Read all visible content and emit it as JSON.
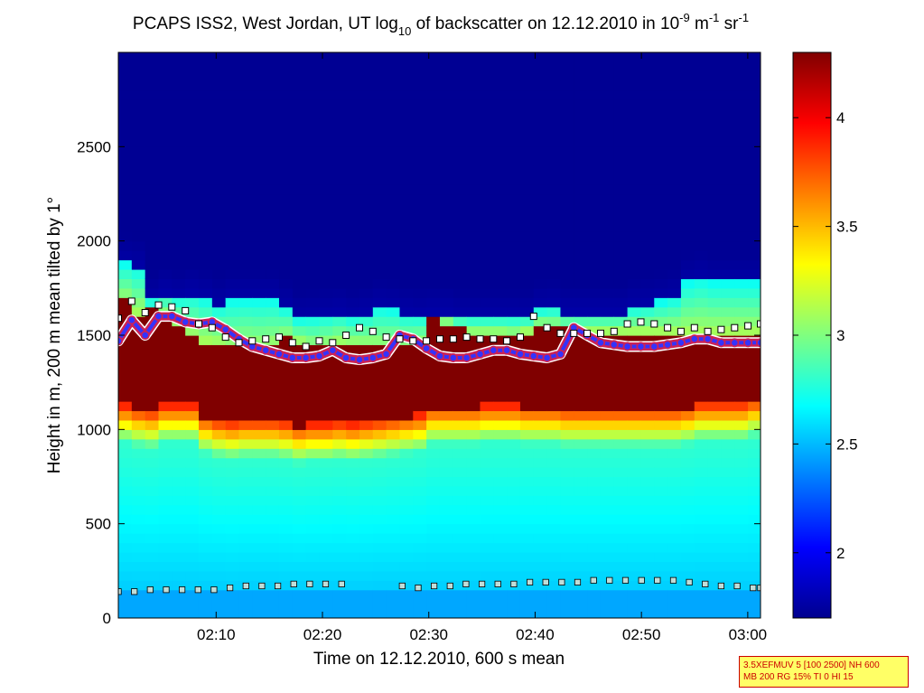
{
  "chart_data": {
    "type": "heatmap",
    "title": {
      "part1": "PCAPS ISS2, West Jordan, UT log",
      "sub": "10",
      "part2": " of backscatter on 12.12.2010 in 10",
      "sup1": "-9",
      "part3": " m",
      "sup2": "-1",
      "part4": " sr",
      "sup3": "-1"
    },
    "xlabel": "Time on 12.12.2010, 600 s mean",
    "ylabel": "Height in m, 200 m mean tilted by 1°",
    "x_ticks": [
      "02:10",
      "02:20",
      "02:30",
      "02:40",
      "02:50",
      "03:00"
    ],
    "x_tick_minutes": [
      130,
      140,
      150,
      160,
      170,
      180
    ],
    "xlim_minutes": [
      120.8,
      181.2
    ],
    "y_ticks": [
      "0",
      "500",
      "1000",
      "1500",
      "2000",
      "2500"
    ],
    "y_tick_values": [
      0,
      500,
      1000,
      1500,
      2000,
      2500
    ],
    "ylim": [
      0,
      3000
    ],
    "colorbar": {
      "range": [
        1.7,
        4.3
      ],
      "ticks": [
        "2",
        "2.5",
        "3",
        "3.5",
        "4"
      ],
      "tick_values": [
        2,
        2.5,
        3,
        3.5,
        4
      ],
      "colormap": "jet"
    },
    "field": {
      "background_value": 2.55,
      "blue_above_value": 1.75,
      "mask_fill_value": 4.3,
      "aerosol_top_height_m": [
        1880,
        1860,
        1680,
        1720,
        1700,
        1720,
        1700,
        1660,
        1690,
        1690,
        1690,
        1690,
        1650,
        1590,
        1600,
        1610,
        1620,
        1600,
        1620,
        1650,
        1640,
        1620,
        1610,
        1620,
        1620,
        1600,
        1600,
        1600,
        1600,
        1600,
        1600,
        1640,
        1650,
        1620,
        1620,
        1620,
        1620,
        1620,
        1650,
        1660,
        1680,
        1700,
        1780,
        1800,
        1780,
        1780,
        1780,
        1780,
        1780
      ],
      "mask_top_height_m": [
        1680,
        1620,
        1650,
        1600,
        1560,
        1500,
        1470,
        1460,
        1430,
        1440,
        1430,
        1440,
        1480,
        1460,
        1430,
        1440,
        1460,
        1450,
        1440,
        1430,
        1440,
        1430,
        1450,
        1580,
        1560,
        1530,
        1510,
        1510,
        1510,
        1500,
        1520,
        1550,
        1540,
        1530,
        1520,
        1520,
        1520,
        1520,
        1520,
        1520,
        1520,
        1520,
        1520,
        1520,
        1520,
        1520,
        1520,
        1520,
        1520
      ],
      "mask_bottom_height_m": [
        1130,
        1110,
        1100,
        1130,
        1130,
        1130,
        1070,
        1050,
        1040,
        1050,
        1050,
        1050,
        1040,
        1020,
        1030,
        1030,
        1040,
        1030,
        1040,
        1050,
        1060,
        1070,
        1080,
        1120,
        1120,
        1120,
        1120,
        1130,
        1130,
        1130,
        1120,
        1120,
        1120,
        1110,
        1110,
        1110,
        1110,
        1110,
        1110,
        1110,
        1110,
        1110,
        1120,
        1140,
        1140,
        1140,
        1140,
        1160,
        1160
      ]
    },
    "series": [
      {
        "values": [
          1470,
          1580,
          1500,
          1600,
          1600,
          1570,
          1560,
          1570,
          1530,
          1480,
          1440,
          1420,
          1400,
          1380,
          1380,
          1390,
          1420,
          1380,
          1370,
          1380,
          1400,
          1500,
          1480,
          1430,
          1390,
          1380,
          1380,
          1400,
          1420,
          1420,
          1400,
          1390,
          1380,
          1400,
          1540,
          1500,
          1460,
          1450,
          1440,
          1440,
          1440,
          1450,
          1460,
          1480,
          1480,
          1460,
          1460,
          1460,
          1460
        ]
      },
      {
        "values": [
          1590,
          1680,
          1620,
          1660,
          1650,
          1630,
          1560,
          1540,
          1490,
          1460,
          1470,
          1480,
          1490,
          1460,
          1440,
          1470,
          1460,
          1500,
          1540,
          1520,
          1490,
          1480,
          1470,
          1470,
          1480,
          1480,
          1490,
          1480,
          1480,
          1470,
          1490,
          1600,
          1540,
          1510,
          1510,
          1510,
          1510,
          1520,
          1560,
          1570,
          1560,
          1540,
          1520,
          1540,
          1520,
          1530,
          1540,
          1550,
          1560
        ]
      },
      {
        "values": [
          140,
          140,
          150,
          150,
          150,
          150,
          150,
          160,
          170,
          170,
          170,
          180,
          180,
          180,
          180,
          170,
          160,
          170,
          170,
          180,
          180,
          180,
          180,
          190,
          190,
          190,
          190,
          200,
          200,
          200,
          200,
          200,
          200,
          190,
          180,
          170,
          170,
          160,
          160
        ]
      }
    ],
    "x_grid": [
      120.8,
      122.06,
      123.32,
      124.58,
      125.84,
      127.1,
      128.36,
      129.62,
      130.88,
      132.14,
      133.4,
      134.66,
      135.92,
      137.18,
      138.44,
      139.7,
      140.96,
      142.22,
      143.48,
      144.74,
      146.0,
      147.26,
      148.52,
      149.78,
      151.04,
      152.3,
      153.56,
      154.82,
      156.08,
      157.34,
      158.6,
      159.86,
      161.12,
      162.38,
      163.64,
      164.9,
      166.16,
      167.42,
      168.68,
      169.94,
      171.2,
      172.46,
      173.72,
      174.98,
      176.24,
      177.5,
      178.76,
      180.02,
      181.2
    ],
    "surface_layer_x_minutes": [
      120.8,
      122.3,
      123.8,
      125.3,
      126.8,
      128.3,
      129.8,
      131.3,
      132.8,
      134.3,
      135.8,
      137.3,
      138.8,
      140.3,
      141.8,
      147.5,
      149.0,
      150.5,
      152.0,
      153.5,
      155.0,
      156.5,
      158.0,
      159.5,
      161.0,
      162.5,
      164.0,
      165.5,
      167.0,
      168.5,
      170.0,
      171.5,
      173.0,
      174.5,
      176.0,
      177.5,
      179.0,
      180.5,
      181.2
    ]
  },
  "info_box": {
    "line1": "3.5XEFMUV 5 [100 2500] NH 600",
    "line2": "MB 200 RG 15% TI 0 HI 15"
  },
  "colors": {
    "frame": "#000000",
    "inner_boundary_line": "#3333ff",
    "inner_boundary_marker": "#cc2255",
    "top_boundary_marker_fill": "#ffffff",
    "surface_marker_fill": "#c0ddd8",
    "info_box_fill": "#ffff66",
    "info_box_text": "#cc0000"
  }
}
